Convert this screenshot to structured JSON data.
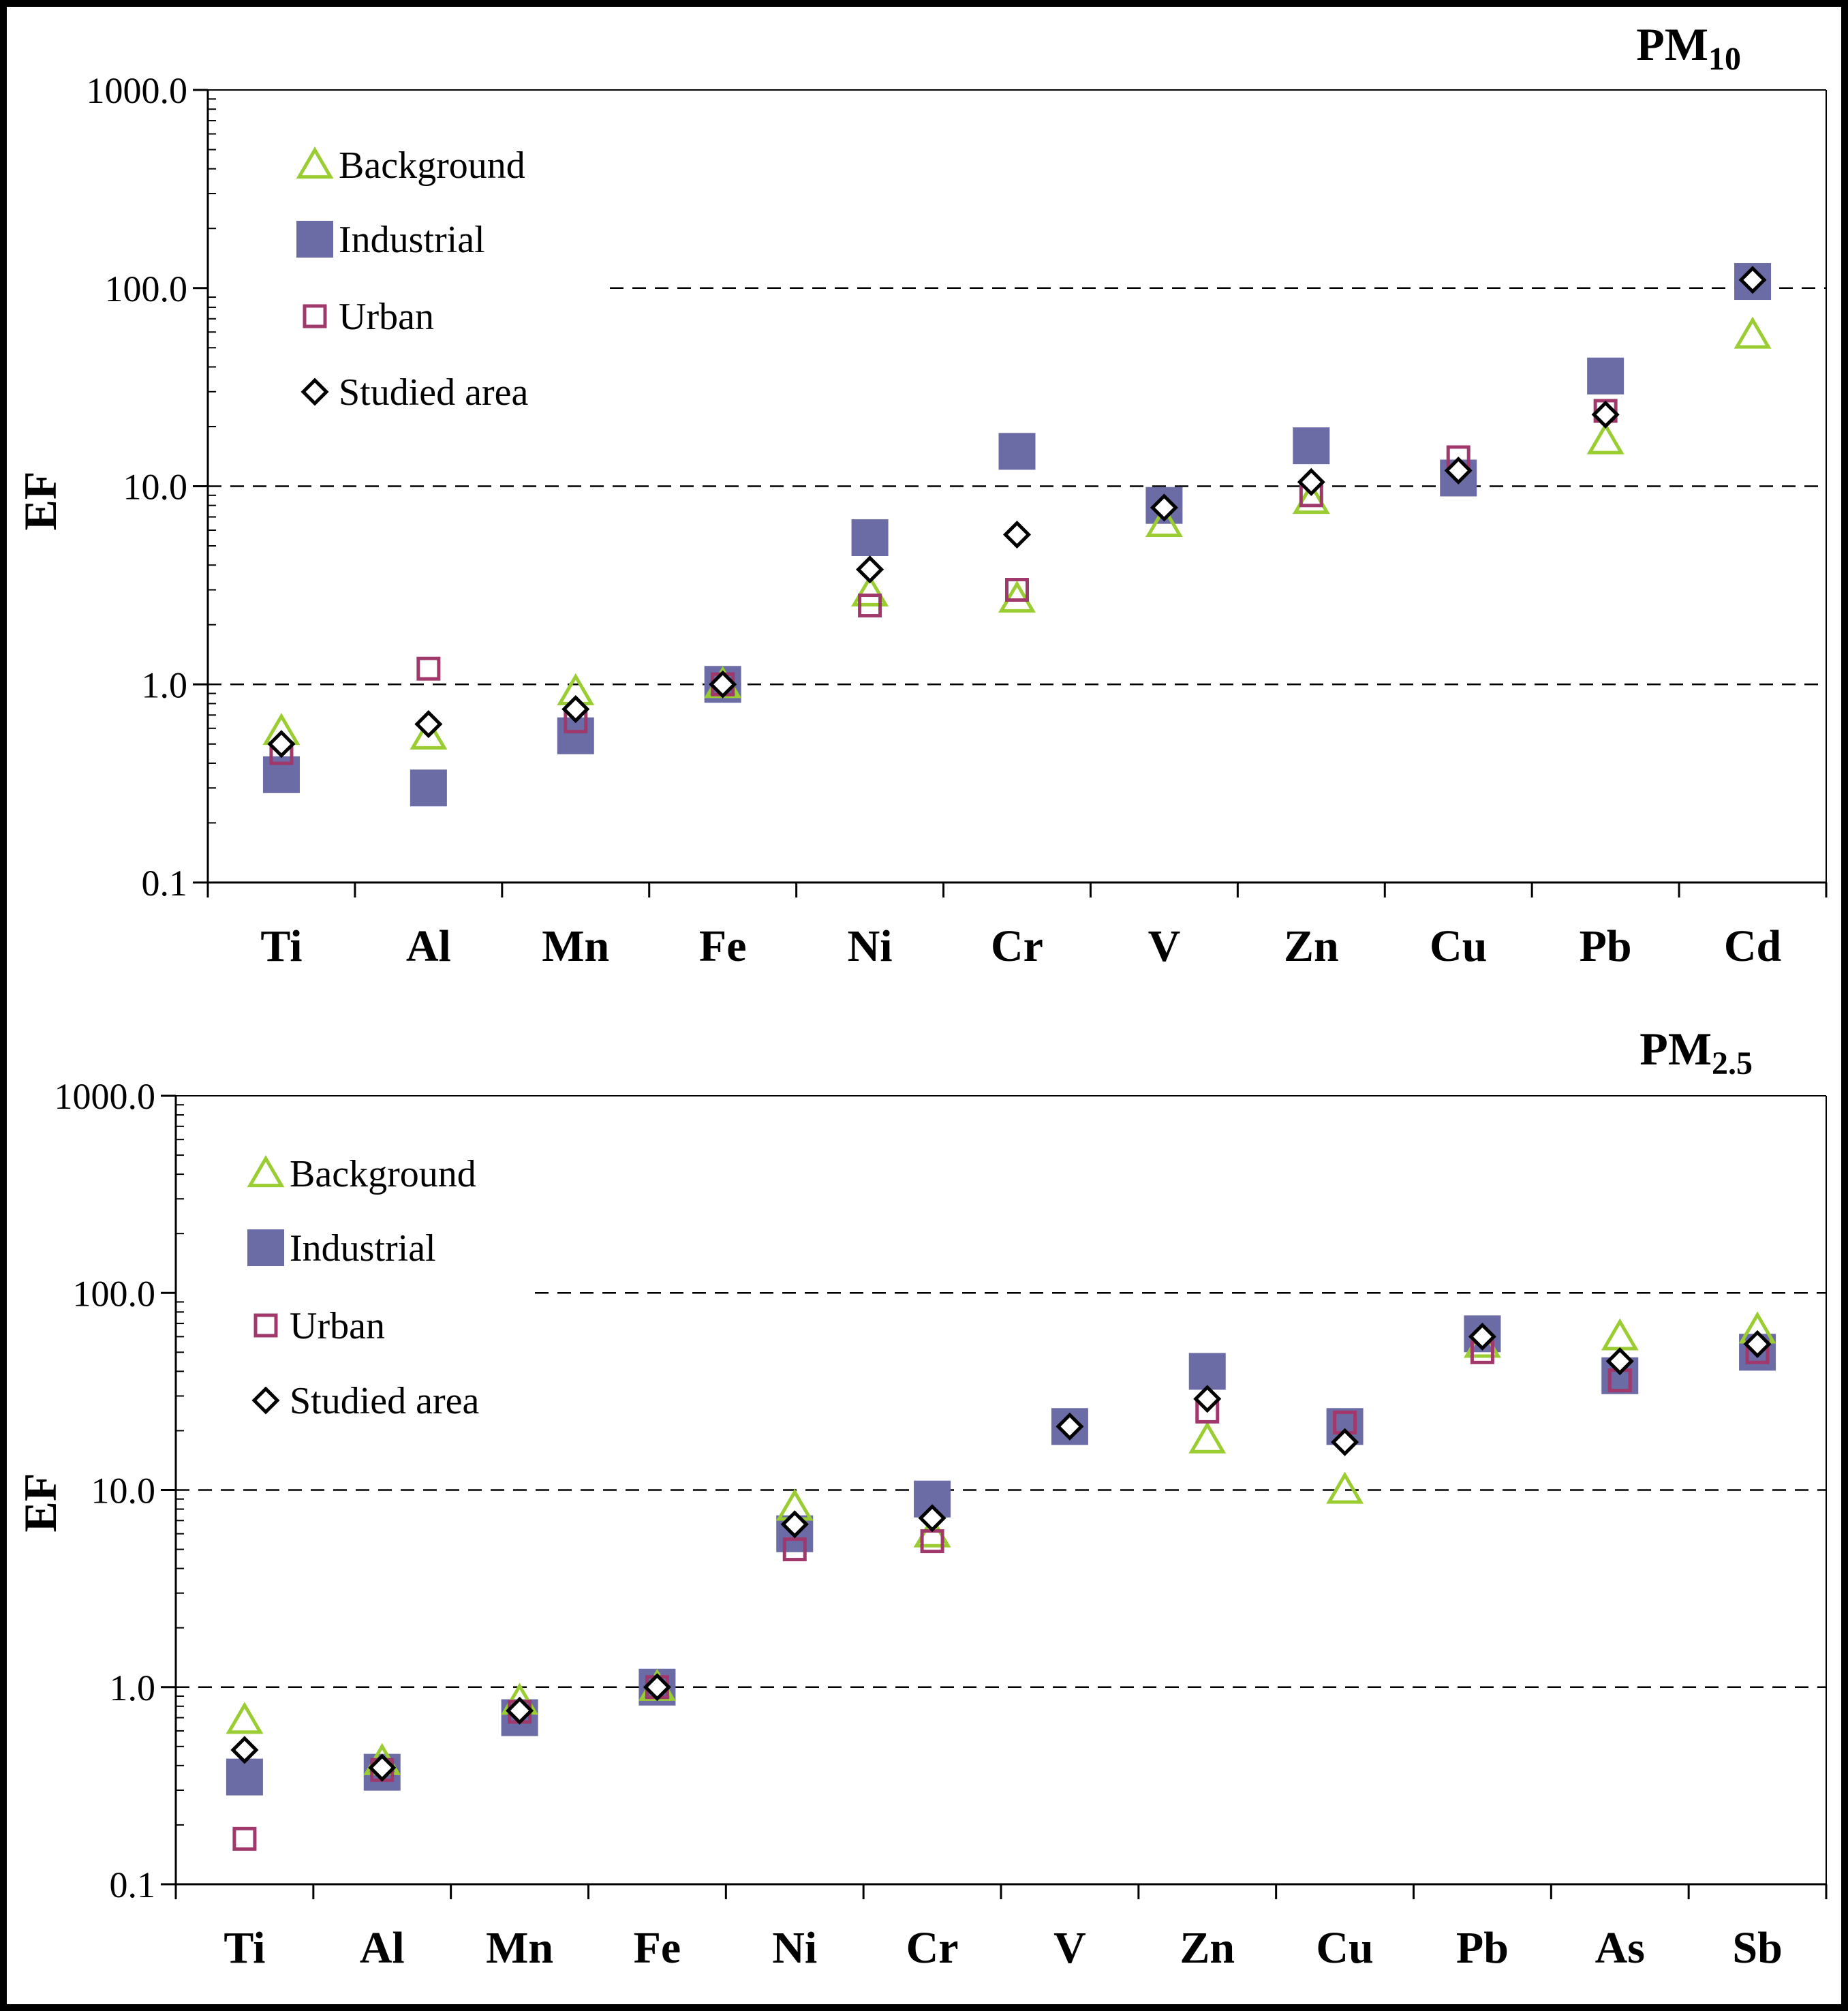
{
  "chart_data": [
    {
      "type": "scatter",
      "title_main": "PM",
      "title_sub": "10",
      "ylabel": "EF",
      "yscale": "log",
      "ylim": [
        0.1,
        1000
      ],
      "yticks": [
        "1000.0",
        "100.0",
        "10.0",
        "1.0",
        "0.1"
      ],
      "ytick_values": [
        1000,
        100,
        10,
        1,
        0.1
      ],
      "gridlines": [
        100,
        10,
        1
      ],
      "categories": [
        "Ti",
        "Al",
        "Mn",
        "Fe",
        "Ni",
        "Cr",
        "V",
        "Zn",
        "Cu",
        "Pb",
        "Cd"
      ],
      "legend": [
        "Background",
        "Industrial",
        "Urban",
        "Studied area"
      ],
      "legend_position": "top-left",
      "series": [
        {
          "name": "Background",
          "marker": "triangle",
          "color": "#9ACD32",
          "values": [
            0.58,
            0.55,
            0.92,
            1.0,
            2.9,
            2.7,
            6.5,
            8.5,
            null,
            17,
            58
          ]
        },
        {
          "name": "Industrial",
          "marker": "square-filled",
          "color": "#6B6BA6",
          "values": [
            0.35,
            0.3,
            0.55,
            1.0,
            5.5,
            15,
            8.0,
            16,
            11,
            36,
            108
          ]
        },
        {
          "name": "Urban",
          "marker": "square-open",
          "color": "#A0386C",
          "values": [
            0.45,
            1.2,
            0.65,
            1.0,
            2.5,
            3.0,
            null,
            9.0,
            14,
            24,
            null
          ]
        },
        {
          "name": "Studied area",
          "marker": "diamond",
          "color": "#000000",
          "values": [
            0.5,
            0.63,
            0.75,
            1.0,
            3.8,
            5.7,
            7.8,
            10.5,
            12,
            23,
            110
          ]
        }
      ]
    },
    {
      "type": "scatter",
      "title_main": "PM",
      "title_sub": "2.5",
      "ylabel": "EF",
      "yscale": "log",
      "ylim": [
        0.1,
        1000
      ],
      "yticks": [
        "1000.0",
        "100.0",
        "10.0",
        "1.0",
        "0.1"
      ],
      "ytick_values": [
        1000,
        100,
        10,
        1,
        0.1
      ],
      "gridlines": [
        100,
        10,
        1
      ],
      "categories": [
        "Ti",
        "Al",
        "Mn",
        "Fe",
        "Ni",
        "Cr",
        "V",
        "Zn",
        "Cu",
        "Pb",
        "As",
        "Sb"
      ],
      "legend": [
        "Background",
        "Industrial",
        "Urban",
        "Studied area"
      ],
      "legend_position": "top-left",
      "series": [
        {
          "name": "Background",
          "marker": "triangle",
          "color": "#9ACD32",
          "values": [
            0.68,
            0.42,
            0.85,
            1.0,
            8.2,
            6.0,
            null,
            18,
            10,
            55,
            60,
            65
          ]
        },
        {
          "name": "Industrial",
          "marker": "square-filled",
          "color": "#6B6BA6",
          "values": [
            0.35,
            0.37,
            0.7,
            1.0,
            6.0,
            9.0,
            21,
            40,
            21,
            62,
            38,
            50
          ]
        },
        {
          "name": "Urban",
          "marker": "square-open",
          "color": "#A0386C",
          "values": [
            0.17,
            0.38,
            0.75,
            1.0,
            5.0,
            5.5,
            null,
            25,
            22,
            50,
            36,
            50
          ]
        },
        {
          "name": "Studied area",
          "marker": "diamond",
          "color": "#000000",
          "values": [
            0.48,
            0.39,
            0.76,
            1.0,
            6.7,
            7.2,
            21,
            29,
            17.5,
            60,
            45,
            55
          ]
        }
      ]
    }
  ]
}
